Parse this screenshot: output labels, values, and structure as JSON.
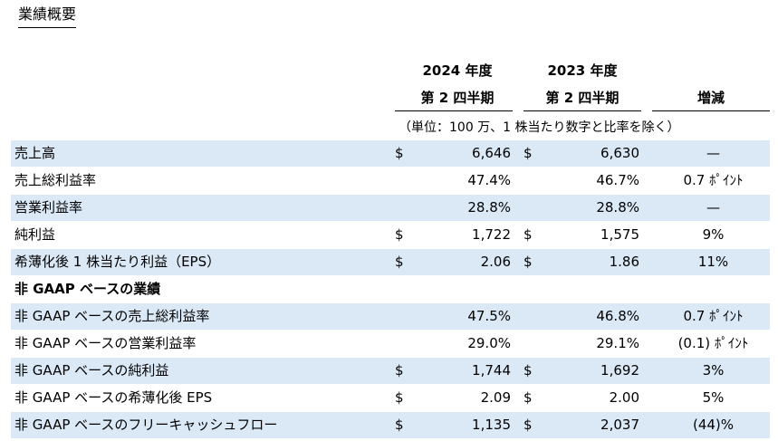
{
  "title": "業績概要",
  "headers": {
    "y2024": "2024 年度",
    "q2024": "第 2 四半期",
    "y2023": "2023 年度",
    "q2023": "第 2 四半期",
    "change": "増減"
  },
  "units_note": "（単位：100 万、1 株当たり数字と比率を除く）",
  "rows": [
    {
      "label": "売上高",
      "cur1": "$",
      "v1": "6,646",
      "cur2": "$",
      "v2": "6,630",
      "chg": "—"
    },
    {
      "label": "売上総利益率",
      "cur1": "",
      "v1": "47.4%",
      "cur2": "",
      "v2": "46.7%",
      "chg": "0.7 ﾎﾟｲﾝﾄ"
    },
    {
      "label": "営業利益率",
      "cur1": "",
      "v1": "28.8%",
      "cur2": "",
      "v2": "28.8%",
      "chg": "—"
    },
    {
      "label": "純利益",
      "cur1": "$",
      "v1": "1,722",
      "cur2": "$",
      "v2": "1,575",
      "chg": "9%"
    },
    {
      "label": "希薄化後 1 株当たり利益（EPS）",
      "cur1": "$",
      "v1": "2.06",
      "cur2": "$",
      "v2": "1.86",
      "chg": "11%"
    }
  ],
  "nongaap_section": "非 GAAP ベースの業績",
  "nongaap_rows": [
    {
      "label": "非 GAAP ベースの売上総利益率",
      "cur1": "",
      "v1": "47.5%",
      "cur2": "",
      "v2": "46.8%",
      "chg": "0.7 ﾎﾟｲﾝﾄ"
    },
    {
      "label": "非 GAAP ベースの営業利益率",
      "cur1": "",
      "v1": "29.0%",
      "cur2": "",
      "v2": "29.1%",
      "chg": "(0.1) ﾎﾟｲﾝﾄ"
    },
    {
      "label": "非 GAAP ベースの純利益",
      "cur1": "$",
      "v1": "1,744",
      "cur2": "$",
      "v2": "1,692",
      "chg": "3%"
    },
    {
      "label": "非 GAAP ベースの希薄化後 EPS",
      "cur1": "$",
      "v1": "2.09",
      "cur2": "$",
      "v2": "2.00",
      "chg": "5%"
    },
    {
      "label": "非 GAAP ベースのフリーキャッシュフロー",
      "cur1": "$",
      "v1": "1,135",
      "cur2": "$",
      "v2": "2,037",
      "chg": "(44)%"
    }
  ]
}
